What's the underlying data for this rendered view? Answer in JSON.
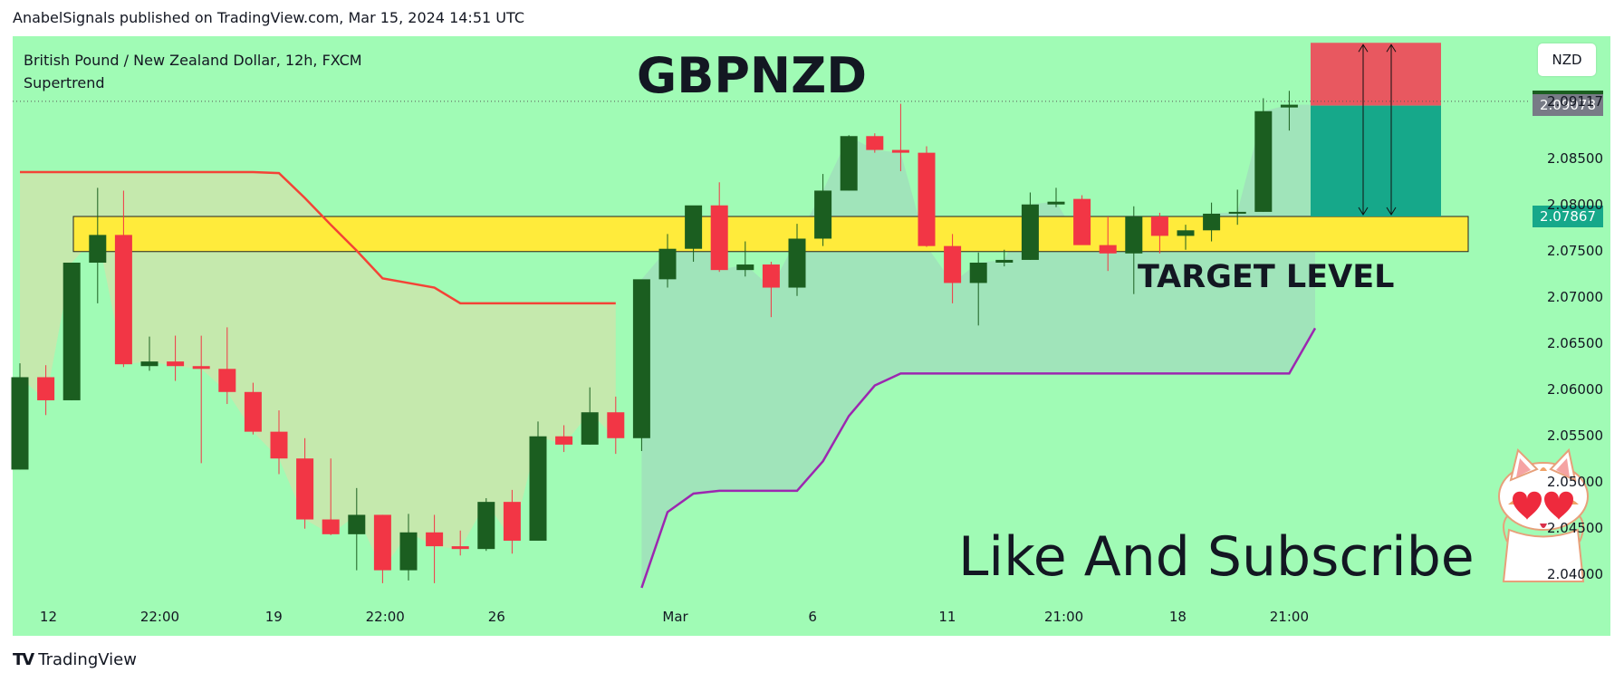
{
  "header": {
    "text": "AnabelSignals published on TradingView.com, Mar 15, 2024 14:51 UTC"
  },
  "legend": {
    "symbol": "British Pound / New Zealand Dollar, 12h, FXCM",
    "indicator": "Supertrend"
  },
  "title": "GBPNZD",
  "annotations": {
    "target": "TARGET LEVEL",
    "cta": "Like And Subscribe"
  },
  "currency": "NZD",
  "footer": {
    "brand": "TradingView",
    "logo": "tradingview-logo"
  },
  "colors": {
    "background": "#a0fbb5",
    "bull": "#1b5e20",
    "bear": "#f23645",
    "supertrend_up": "#9c27b0",
    "supertrend_down": "#f44336",
    "target_zone": "#ffeb3b",
    "stop_zone": "#e85860",
    "profit_zone": "#16a88a"
  },
  "badges": [
    {
      "label": "2.09117",
      "value": 2.09117,
      "color": "#1b5e20"
    },
    {
      "label": "2.09078",
      "value": 2.09078,
      "color": "#787b86"
    },
    {
      "label": "2.07867",
      "value": 2.07867,
      "color": "#16a88a"
    }
  ],
  "chart_data": {
    "type": "candlestick",
    "title": "GBPNZD",
    "symbol": "British Pound / New Zealand Dollar",
    "timeframe": "12h",
    "ylim": [
      2.0385,
      2.0938
    ],
    "y_ticks": [
      "2.09117",
      "2.08500",
      "2.08000",
      "2.07500",
      "2.07000",
      "2.06500",
      "2.06000",
      "2.05500",
      "2.05000",
      "2.04500",
      "2.04000"
    ],
    "x_ticks": [
      "12",
      "22:00",
      "19",
      "22:00",
      "26",
      "Mar",
      "6",
      "11",
      "21:00",
      "18",
      "21:00"
    ],
    "candles": [
      {
        "o": 2.0513,
        "h": 2.0628,
        "l": 2.0513,
        "c": 2.0613
      },
      {
        "o": 2.0613,
        "h": 2.0626,
        "l": 2.0572,
        "c": 2.0588
      },
      {
        "o": 2.0588,
        "h": 2.0737,
        "l": 2.0588,
        "c": 2.0737
      },
      {
        "o": 2.0737,
        "h": 2.0818,
        "l": 2.0693,
        "c": 2.0767
      },
      {
        "o": 2.0767,
        "h": 2.0815,
        "l": 2.0624,
        "c": 2.0627
      },
      {
        "o": 2.0625,
        "h": 2.0657,
        "l": 2.062,
        "c": 2.063
      },
      {
        "o": 2.063,
        "h": 2.0658,
        "l": 2.0609,
        "c": 2.0625
      },
      {
        "o": 2.0625,
        "h": 2.0658,
        "l": 2.052,
        "c": 2.0622
      },
      {
        "o": 2.0622,
        "h": 2.0667,
        "l": 2.0584,
        "c": 2.0597
      },
      {
        "o": 2.0597,
        "h": 2.0607,
        "l": 2.0551,
        "c": 2.0554
      },
      {
        "o": 2.0554,
        "h": 2.0577,
        "l": 2.0508,
        "c": 2.0525
      },
      {
        "o": 2.0525,
        "h": 2.0547,
        "l": 2.0449,
        "c": 2.0459
      },
      {
        "o": 2.0459,
        "h": 2.0525,
        "l": 2.0442,
        "c": 2.0443
      },
      {
        "o": 2.0443,
        "h": 2.0493,
        "l": 2.0404,
        "c": 2.0464
      },
      {
        "o": 2.0464,
        "h": 2.0464,
        "l": 2.039,
        "c": 2.0404
      },
      {
        "o": 2.0404,
        "h": 2.0465,
        "l": 2.0393,
        "c": 2.0445
      },
      {
        "o": 2.0445,
        "h": 2.0464,
        "l": 2.039,
        "c": 2.043
      },
      {
        "o": 2.043,
        "h": 2.0447,
        "l": 2.042,
        "c": 2.0427
      },
      {
        "o": 2.0427,
        "h": 2.0482,
        "l": 2.0425,
        "c": 2.0478
      },
      {
        "o": 2.0478,
        "h": 2.0491,
        "l": 2.0422,
        "c": 2.0436
      },
      {
        "o": 2.0436,
        "h": 2.0565,
        "l": 2.0436,
        "c": 2.0549
      },
      {
        "o": 2.0549,
        "h": 2.0561,
        "l": 2.0532,
        "c": 2.054
      },
      {
        "o": 2.054,
        "h": 2.0602,
        "l": 2.054,
        "c": 2.0575
      },
      {
        "o": 2.0575,
        "h": 2.0592,
        "l": 2.053,
        "c": 2.0547
      },
      {
        "o": 2.0547,
        "h": 2.0714,
        "l": 2.0533,
        "c": 2.0719
      },
      {
        "o": 2.0719,
        "h": 2.0768,
        "l": 2.071,
        "c": 2.0752
      },
      {
        "o": 2.0752,
        "h": 2.0798,
        "l": 2.0738,
        "c": 2.0799
      },
      {
        "o": 2.0799,
        "h": 2.0824,
        "l": 2.0727,
        "c": 2.0729
      },
      {
        "o": 2.0729,
        "h": 2.076,
        "l": 2.0722,
        "c": 2.0735
      },
      {
        "o": 2.0735,
        "h": 2.0738,
        "l": 2.0678,
        "c": 2.071
      },
      {
        "o": 2.071,
        "h": 2.0779,
        "l": 2.0701,
        "c": 2.0763
      },
      {
        "o": 2.0763,
        "h": 2.0833,
        "l": 2.0755,
        "c": 2.0815
      },
      {
        "o": 2.0815,
        "h": 2.0875,
        "l": 2.0815,
        "c": 2.0874
      },
      {
        "o": 2.0874,
        "h": 2.0877,
        "l": 2.0856,
        "c": 2.0859
      },
      {
        "o": 2.0859,
        "h": 2.0909,
        "l": 2.0836,
        "c": 2.0856
      },
      {
        "o": 2.0856,
        "h": 2.0863,
        "l": 2.0754,
        "c": 2.0755
      },
      {
        "o": 2.0755,
        "h": 2.0768,
        "l": 2.0693,
        "c": 2.0715
      },
      {
        "o": 2.0715,
        "h": 2.0748,
        "l": 2.0669,
        "c": 2.0737
      },
      {
        "o": 2.0737,
        "h": 2.0751,
        "l": 2.0733,
        "c": 2.074
      },
      {
        "o": 2.074,
        "h": 2.0813,
        "l": 2.074,
        "c": 2.08
      },
      {
        "o": 2.08,
        "h": 2.0818,
        "l": 2.0797,
        "c": 2.0803
      },
      {
        "o": 2.0806,
        "h": 2.081,
        "l": 2.0759,
        "c": 2.0756
      },
      {
        "o": 2.0756,
        "h": 2.0787,
        "l": 2.0728,
        "c": 2.0747
      },
      {
        "o": 2.0747,
        "h": 2.0798,
        "l": 2.0703,
        "c": 2.0787
      },
      {
        "o": 2.0787,
        "h": 2.0791,
        "l": 2.0747,
        "c": 2.0766
      },
      {
        "o": 2.0766,
        "h": 2.0778,
        "l": 2.0751,
        "c": 2.0772
      },
      {
        "o": 2.0772,
        "h": 2.0802,
        "l": 2.076,
        "c": 2.079
      },
      {
        "o": 2.079,
        "h": 2.0816,
        "l": 2.0778,
        "c": 2.0792
      },
      {
        "o": 2.0792,
        "h": 2.0915,
        "l": 2.0792,
        "c": 2.0901
      },
      {
        "o": 2.0905,
        "h": 2.0923,
        "l": 2.088,
        "c": 2.0908
      }
    ],
    "supertrend": {
      "down": [
        2.0835,
        2.0835,
        2.0835,
        2.0835,
        2.0835,
        2.0835,
        2.0835,
        2.0835,
        2.0835,
        2.0835,
        2.0834,
        2.0807,
        2.0778,
        2.075,
        2.072,
        2.0715,
        2.071,
        2.0693,
        2.0693,
        2.0693,
        2.0693,
        2.0693,
        2.0693,
        2.0693
      ],
      "up": [
        2.0385,
        2.0467,
        2.0487,
        2.049,
        2.049,
        2.049,
        2.049,
        2.0522,
        2.0571,
        2.0604,
        2.0617,
        2.0617,
        2.0617,
        2.0617,
        2.0617,
        2.0617,
        2.0617,
        2.0617,
        2.0617,
        2.0617,
        2.0617,
        2.0617,
        2.0617,
        2.0617,
        2.0617,
        2.0617,
        2.0666
      ]
    },
    "target_zone": [
      2.0749,
      2.0787
    ],
    "position": {
      "entry": 2.0907,
      "stop": 2.0975,
      "target": 2.0787
    }
  }
}
